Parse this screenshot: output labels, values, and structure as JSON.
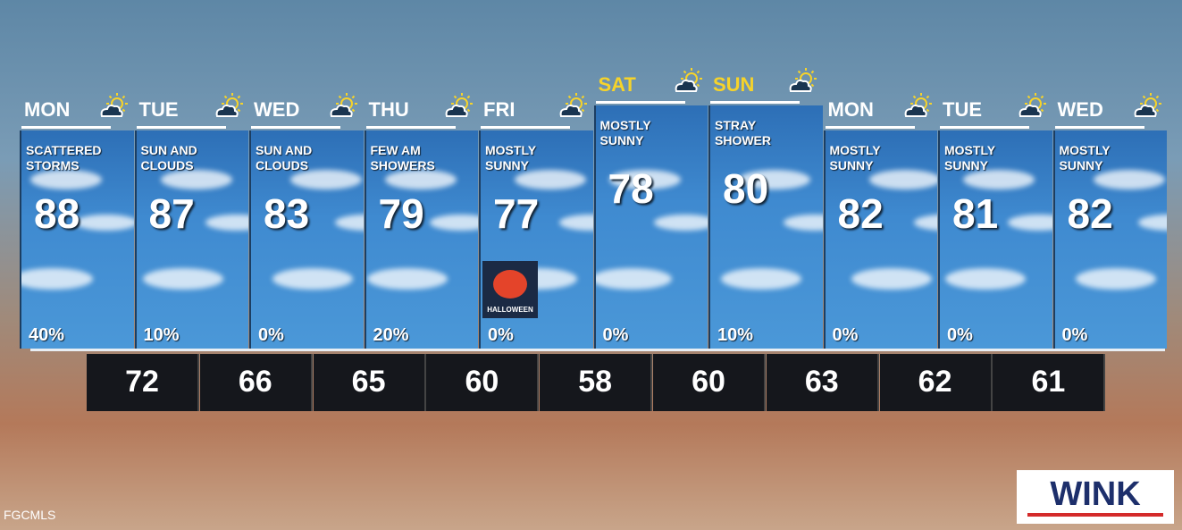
{
  "days": [
    {
      "day": "MON",
      "condition": "SCATTERED STORMS",
      "high": 88,
      "precip": "40%"
    },
    {
      "day": "TUE",
      "condition": "SUN AND CLOUDS",
      "high": 87,
      "precip": "10%"
    },
    {
      "day": "WED",
      "condition": "SUN AND CLOUDS",
      "high": 83,
      "precip": "0%"
    },
    {
      "day": "THU",
      "condition": "FEW AM SHOWERS",
      "high": 79,
      "precip": "20%"
    },
    {
      "day": "FRI",
      "condition": "MOSTLY SUNNY",
      "high": 77,
      "precip": "0%",
      "badge": "HALLOWEEN"
    },
    {
      "day": "SAT",
      "condition": "MOSTLY SUNNY",
      "high": 78,
      "precip": "0%",
      "label_color": "#f6d32a"
    },
    {
      "day": "SUN",
      "condition": "STRAY SHOWER",
      "high": 80,
      "precip": "10%",
      "label_color": "#f6d32a"
    },
    {
      "day": "MON",
      "condition": "MOSTLY SUNNY",
      "high": 82,
      "precip": "0%"
    },
    {
      "day": "TUE",
      "condition": "MOSTLY SUNNY",
      "high": 81,
      "precip": "0%"
    },
    {
      "day": "WED",
      "condition": "MOSTLY SUNNY",
      "high": 82,
      "precip": "0%"
    }
  ],
  "lows": [
    72,
    66,
    65,
    60,
    58,
    60,
    63,
    62,
    61
  ],
  "logo": "WINK",
  "watermark": "FGCMLS"
}
